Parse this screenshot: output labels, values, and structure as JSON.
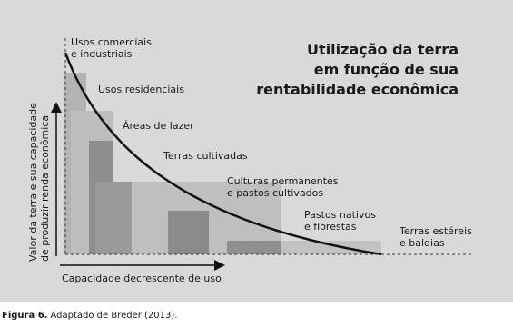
{
  "title": [
    "Utilização da terra",
    "em função de sua",
    "rentabilidade econômica"
  ],
  "y_axis_label": [
    "Valor da terra e sua capacidade",
    "de produzir renda econômica"
  ],
  "x_axis_label": "Capacidade decrescente de uso",
  "labels": [
    [
      "Usos comerciais",
      "e industriais"
    ],
    [
      "Usos residenciais"
    ],
    [
      "Áreas de lazer"
    ],
    [
      "Terras cultivadas"
    ],
    [
      "Culturas permanentes",
      "e pastos cultivados"
    ],
    [
      "Pastos nativos",
      "e florestas"
    ],
    [
      "Terras estéreis",
      "e baldias"
    ]
  ],
  "caption": {
    "label": "Figura 6.",
    "text": "Adaptado de Breder (2013)."
  }
}
